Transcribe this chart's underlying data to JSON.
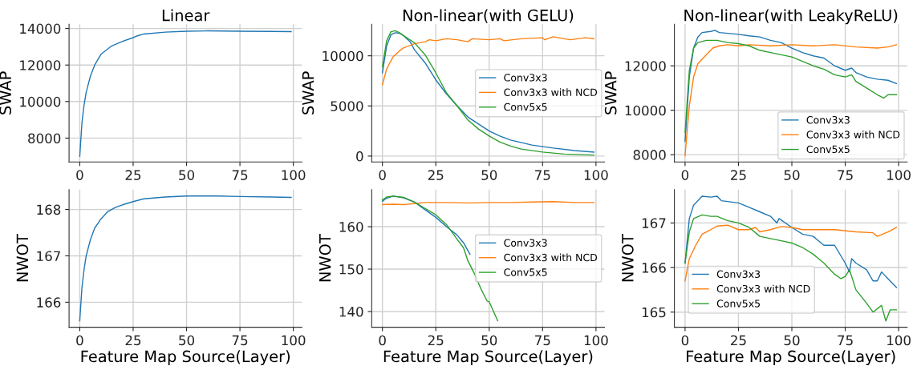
{
  "chart_data": [
    {
      "type": "line",
      "title": "Linear",
      "ylabel": "SWAP",
      "xlim": [
        -5,
        104
      ],
      "xticks": [
        0,
        25,
        50,
        75,
        100
      ],
      "ylim": [
        6690,
        14230
      ],
      "yticks": [
        8000,
        10000,
        12000,
        14000
      ],
      "grid": true,
      "series": [
        {
          "color": "#1f77b4",
          "x": [
            0,
            1,
            2,
            3,
            5,
            7,
            10,
            15,
            20,
            25,
            27,
            30,
            40,
            50,
            60,
            75,
            90,
            99
          ],
          "values": [
            7000,
            8800,
            9800,
            10500,
            11400,
            12000,
            12600,
            13050,
            13300,
            13500,
            13600,
            13700,
            13800,
            13850,
            13870,
            13850,
            13840,
            13830
          ]
        }
      ]
    },
    {
      "type": "line",
      "title": "Non-linear(with GELU)",
      "ylabel": "SWAP",
      "xlim": [
        -5,
        104
      ],
      "xticks": [
        0,
        25,
        50,
        75,
        100
      ],
      "ylim": [
        -590,
        13140
      ],
      "yticks": [
        0,
        5000,
        10000
      ],
      "grid": true,
      "legend": "center right",
      "series": [
        {
          "name": "Conv3x3",
          "color": "#1f77b4",
          "x": [
            0,
            2,
            4,
            6,
            8,
            10,
            13,
            15,
            20,
            25,
            30,
            35,
            40,
            45,
            50,
            55,
            60,
            70,
            80,
            90,
            99
          ],
          "values": [
            8300,
            11000,
            12100,
            12300,
            12250,
            12000,
            11400,
            10600,
            9300,
            7600,
            6200,
            5000,
            3900,
            3200,
            2500,
            2000,
            1600,
            1100,
            800,
            550,
            400
          ]
        },
        {
          "name": "Conv3x3 with NCD",
          "color": "#ff7f0e",
          "x": [
            0,
            2,
            5,
            8,
            10,
            15,
            20,
            22,
            25,
            30,
            35,
            40,
            42,
            50,
            55,
            57,
            65,
            75,
            76,
            80,
            85,
            88,
            95,
            99
          ],
          "values": [
            7100,
            8700,
            9900,
            10500,
            10800,
            11200,
            11400,
            11600,
            11500,
            11700,
            11600,
            11400,
            11700,
            11600,
            11700,
            11500,
            11700,
            11800,
            11600,
            11900,
            11700,
            11600,
            11800,
            11700
          ]
        },
        {
          "name": "Conv5x5",
          "color": "#2ca02c",
          "x": [
            0,
            2,
            4,
            6,
            8,
            10,
            15,
            20,
            25,
            30,
            35,
            40,
            45,
            50,
            55,
            60,
            65,
            75,
            85,
            99
          ],
          "values": [
            8900,
            11500,
            12400,
            12500,
            12300,
            12000,
            11300,
            10100,
            8300,
            6300,
            5000,
            3600,
            2700,
            2000,
            1400,
            1000,
            700,
            400,
            200,
            100
          ]
        }
      ]
    },
    {
      "type": "line",
      "title": "Non-linear(with LeakyReLU)",
      "ylabel": "SWAP",
      "xlim": [
        -5,
        104
      ],
      "xticks": [
        0,
        25,
        50,
        75,
        100
      ],
      "ylim": [
        7670,
        13870
      ],
      "yticks": [
        8000,
        10000,
        12000
      ],
      "grid": true,
      "legend": "lower right",
      "series": [
        {
          "name": "Conv3x3",
          "color": "#1f77b4",
          "x": [
            0,
            2,
            4,
            6,
            8,
            12,
            14,
            16,
            25,
            30,
            35,
            40,
            45,
            50,
            55,
            60,
            65,
            70,
            75,
            78,
            80,
            85,
            90,
            95,
            99
          ],
          "values": [
            8600,
            11500,
            12800,
            13300,
            13500,
            13550,
            13600,
            13500,
            13420,
            13350,
            13300,
            13150,
            13050,
            12800,
            12600,
            12450,
            12350,
            12000,
            11800,
            11900,
            11700,
            11500,
            11400,
            11350,
            11200
          ]
        },
        {
          "name": "Conv3x3 with NCD",
          "color": "#ff7f0e",
          "x": [
            0,
            2,
            4,
            6,
            10,
            13,
            16,
            20,
            25,
            30,
            40,
            50,
            60,
            70,
            80,
            90,
            95,
            99
          ],
          "values": [
            7950,
            10200,
            11500,
            12100,
            12500,
            12800,
            12900,
            12950,
            12900,
            12950,
            12900,
            12950,
            12900,
            12950,
            12850,
            12800,
            12850,
            12950
          ]
        },
        {
          "name": "Conv5x5",
          "color": "#2ca02c",
          "x": [
            0,
            2,
            4,
            6,
            10,
            15,
            20,
            25,
            30,
            35,
            40,
            45,
            50,
            55,
            60,
            65,
            70,
            75,
            78,
            80,
            85,
            90,
            93,
            95,
            99
          ],
          "values": [
            9000,
            11800,
            12800,
            13050,
            13150,
            13150,
            13050,
            13000,
            12900,
            12700,
            12600,
            12500,
            12400,
            12200,
            12000,
            11850,
            11600,
            11500,
            11600,
            11300,
            11000,
            10700,
            10550,
            10700,
            10700
          ]
        }
      ]
    },
    {
      "type": "line",
      "xlabel": "Feature Map Source(Layer)",
      "ylabel": "NWOT",
      "xlim": [
        -5,
        104
      ],
      "xticks": [
        0,
        25,
        50,
        75,
        100
      ],
      "ylim": [
        165.46,
        168.43
      ],
      "yticks": [
        166,
        167,
        168
      ],
      "grid": true,
      "series": [
        {
          "color": "#1f77b4",
          "x": [
            0,
            1,
            2,
            3,
            5,
            7,
            10,
            13,
            17,
            20,
            25,
            30,
            40,
            50,
            65,
            75,
            90,
            99
          ],
          "values": [
            165.6,
            166.3,
            166.7,
            167.0,
            167.35,
            167.6,
            167.8,
            167.95,
            168.05,
            168.1,
            168.17,
            168.23,
            168.27,
            168.29,
            168.29,
            168.28,
            168.27,
            168.26
          ]
        }
      ]
    },
    {
      "type": "line",
      "xlabel": "Feature Map Source(Layer)",
      "ylabel": "NWOT",
      "xlim": [
        -5,
        104
      ],
      "xticks": [
        0,
        25,
        50,
        75,
        100
      ],
      "ylim": [
        136.3,
        168.75
      ],
      "yticks": [
        140,
        150,
        160
      ],
      "grid": true,
      "legend": "center right",
      "series": [
        {
          "name": "Conv3x3",
          "color": "#1f77b4",
          "x": [
            0,
            2,
            5,
            10,
            15,
            20,
            25,
            30,
            35,
            38,
            41
          ],
          "values": [
            166.0,
            166.7,
            167.2,
            166.8,
            165.8,
            164.0,
            162.2,
            160.0,
            158.0,
            156.2,
            153.5
          ]
        },
        {
          "name": "Conv3x3 with NCD",
          "color": "#ff7f0e",
          "x": [
            0,
            5,
            10,
            20,
            30,
            40,
            50,
            60,
            70,
            80,
            90,
            99
          ],
          "values": [
            165.2,
            165.3,
            165.2,
            165.7,
            165.7,
            165.6,
            165.7,
            165.7,
            165.8,
            165.9,
            165.7,
            165.7
          ]
        },
        {
          "name": "Conv5x5",
          "color": "#2ca02c",
          "x": [
            0,
            2,
            5,
            10,
            15,
            20,
            25,
            30,
            35,
            38,
            40,
            43,
            46,
            49,
            50,
            54
          ],
          "values": [
            166.3,
            167.0,
            167.2,
            166.9,
            165.8,
            164.3,
            162.8,
            160.5,
            157.0,
            155.0,
            152.0,
            149.0,
            145.5,
            142.5,
            142.3,
            137.8
          ]
        }
      ]
    },
    {
      "type": "line",
      "xlabel": "Feature Map Source(Layer)",
      "ylabel": "NWOT",
      "xlim": [
        -5,
        104
      ],
      "xticks": [
        0,
        25,
        50,
        75,
        100
      ],
      "ylim": [
        164.66,
        167.75
      ],
      "yticks": [
        165,
        166,
        167
      ],
      "grid": true,
      "legend": "lower left",
      "series": [
        {
          "name": "Conv3x3",
          "color": "#1f77b4",
          "x": [
            0,
            2,
            4,
            8,
            12,
            15,
            17,
            25,
            30,
            35,
            40,
            43,
            44,
            50,
            55,
            60,
            65,
            70,
            75,
            77,
            78,
            80,
            85,
            88,
            90,
            92,
            95,
            99
          ],
          "values": [
            166.1,
            167.1,
            167.4,
            167.6,
            167.58,
            167.6,
            167.5,
            167.45,
            167.35,
            167.25,
            167.15,
            167.0,
            167.1,
            166.9,
            166.75,
            166.7,
            166.5,
            166.5,
            166.1,
            165.9,
            166.2,
            166.1,
            165.95,
            165.7,
            165.7,
            165.9,
            165.75,
            165.55
          ]
        },
        {
          "name": "Conv3x3 with NCD",
          "color": "#ff7f0e",
          "x": [
            0,
            2,
            5,
            8,
            12,
            15,
            20,
            25,
            30,
            33,
            35,
            40,
            45,
            50,
            55,
            60,
            70,
            80,
            88,
            90,
            95,
            99
          ],
          "values": [
            165.7,
            166.2,
            166.5,
            166.75,
            166.85,
            166.93,
            166.95,
            166.85,
            166.85,
            166.9,
            166.8,
            166.85,
            166.92,
            166.9,
            166.85,
            166.85,
            166.85,
            166.8,
            166.78,
            166.7,
            166.8,
            166.9
          ]
        },
        {
          "name": "Conv5x5",
          "color": "#2ca02c",
          "x": [
            0,
            2,
            4,
            8,
            12,
            15,
            20,
            25,
            30,
            35,
            40,
            45,
            50,
            55,
            60,
            65,
            70,
            73,
            75,
            77,
            80,
            85,
            88,
            92,
            94,
            96,
            99
          ],
          "values": [
            166.1,
            166.8,
            167.1,
            167.18,
            167.15,
            167.15,
            167.05,
            167.0,
            166.9,
            166.7,
            166.65,
            166.6,
            166.55,
            166.45,
            166.3,
            166.1,
            165.85,
            165.75,
            165.8,
            165.95,
            165.5,
            165.2,
            165.0,
            165.15,
            164.8,
            165.05,
            165.05
          ]
        }
      ]
    }
  ]
}
